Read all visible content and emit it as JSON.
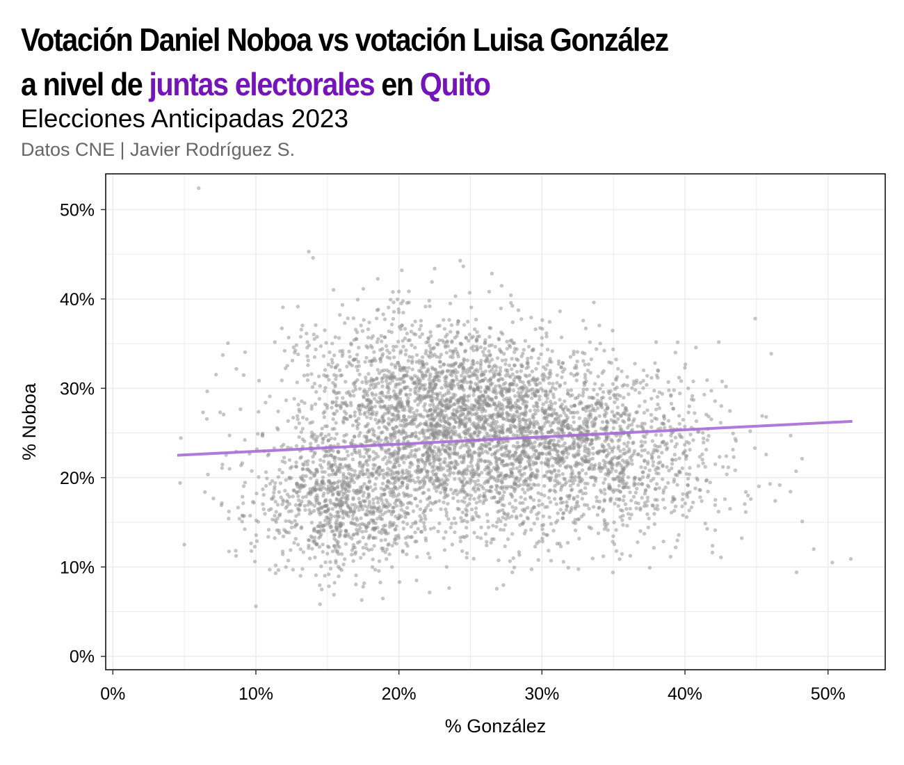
{
  "header": {
    "title_line1": "Votación Daniel Noboa vs votación Luisa González",
    "title_line2_a": "a nivel de ",
    "title_line2_b": "juntas electorales",
    "title_line2_c": " en ",
    "title_line2_d": "Quito",
    "subtitle": "Elecciones Anticipadas 2023",
    "caption": "Datos CNE | Javier Rodríguez S."
  },
  "colors": {
    "highlight": "#7414b9",
    "points": "#8c8c8c",
    "trend": "#a66bd8",
    "grid": "#ebebeb"
  },
  "chart_data": {
    "type": "scatter",
    "xlabel": "% González",
    "ylabel": "% Noboa",
    "xlim": [
      -0.5,
      54
    ],
    "ylim": [
      -1.5,
      54
    ],
    "x_ticks": [
      0,
      10,
      20,
      30,
      40,
      50
    ],
    "y_ticks": [
      0,
      10,
      20,
      30,
      40,
      50
    ],
    "x_tick_labels": [
      "0%",
      "10%",
      "20%",
      "30%",
      "40%",
      "50%"
    ],
    "y_tick_labels": [
      "0%",
      "10%",
      "20%",
      "30%",
      "40%",
      "50%"
    ],
    "grid": true,
    "point_count_approx": 5200,
    "cluster": {
      "center_x": 26.5,
      "center_y": 24.5,
      "sd_x": 6.3,
      "sd_y": 5.2
    },
    "notable_points": [
      {
        "x": 6,
        "y": 52.4
      },
      {
        "x": 13.7,
        "y": 45.3
      },
      {
        "x": 14,
        "y": 44.6
      },
      {
        "x": 20.2,
        "y": 43.2
      },
      {
        "x": 22.5,
        "y": 43.4
      },
      {
        "x": 10,
        "y": 5.6
      },
      {
        "x": 17.4,
        "y": 6.3
      },
      {
        "x": 4.7,
        "y": 19.4
      },
      {
        "x": 5,
        "y": 12.5
      },
      {
        "x": 6.3,
        "y": 27.3
      },
      {
        "x": 7.5,
        "y": 27.3
      },
      {
        "x": 47.8,
        "y": 9.4
      },
      {
        "x": 50.3,
        "y": 10.5
      },
      {
        "x": 51.6,
        "y": 10.9
      },
      {
        "x": 49,
        "y": 12
      },
      {
        "x": 48.2,
        "y": 15.1
      },
      {
        "x": 45.4,
        "y": 26.9
      },
      {
        "x": 44.6,
        "y": 17.6
      }
    ],
    "trend_line": {
      "x": [
        4.5,
        51.7
      ],
      "y": [
        22.5,
        26.3
      ]
    }
  }
}
